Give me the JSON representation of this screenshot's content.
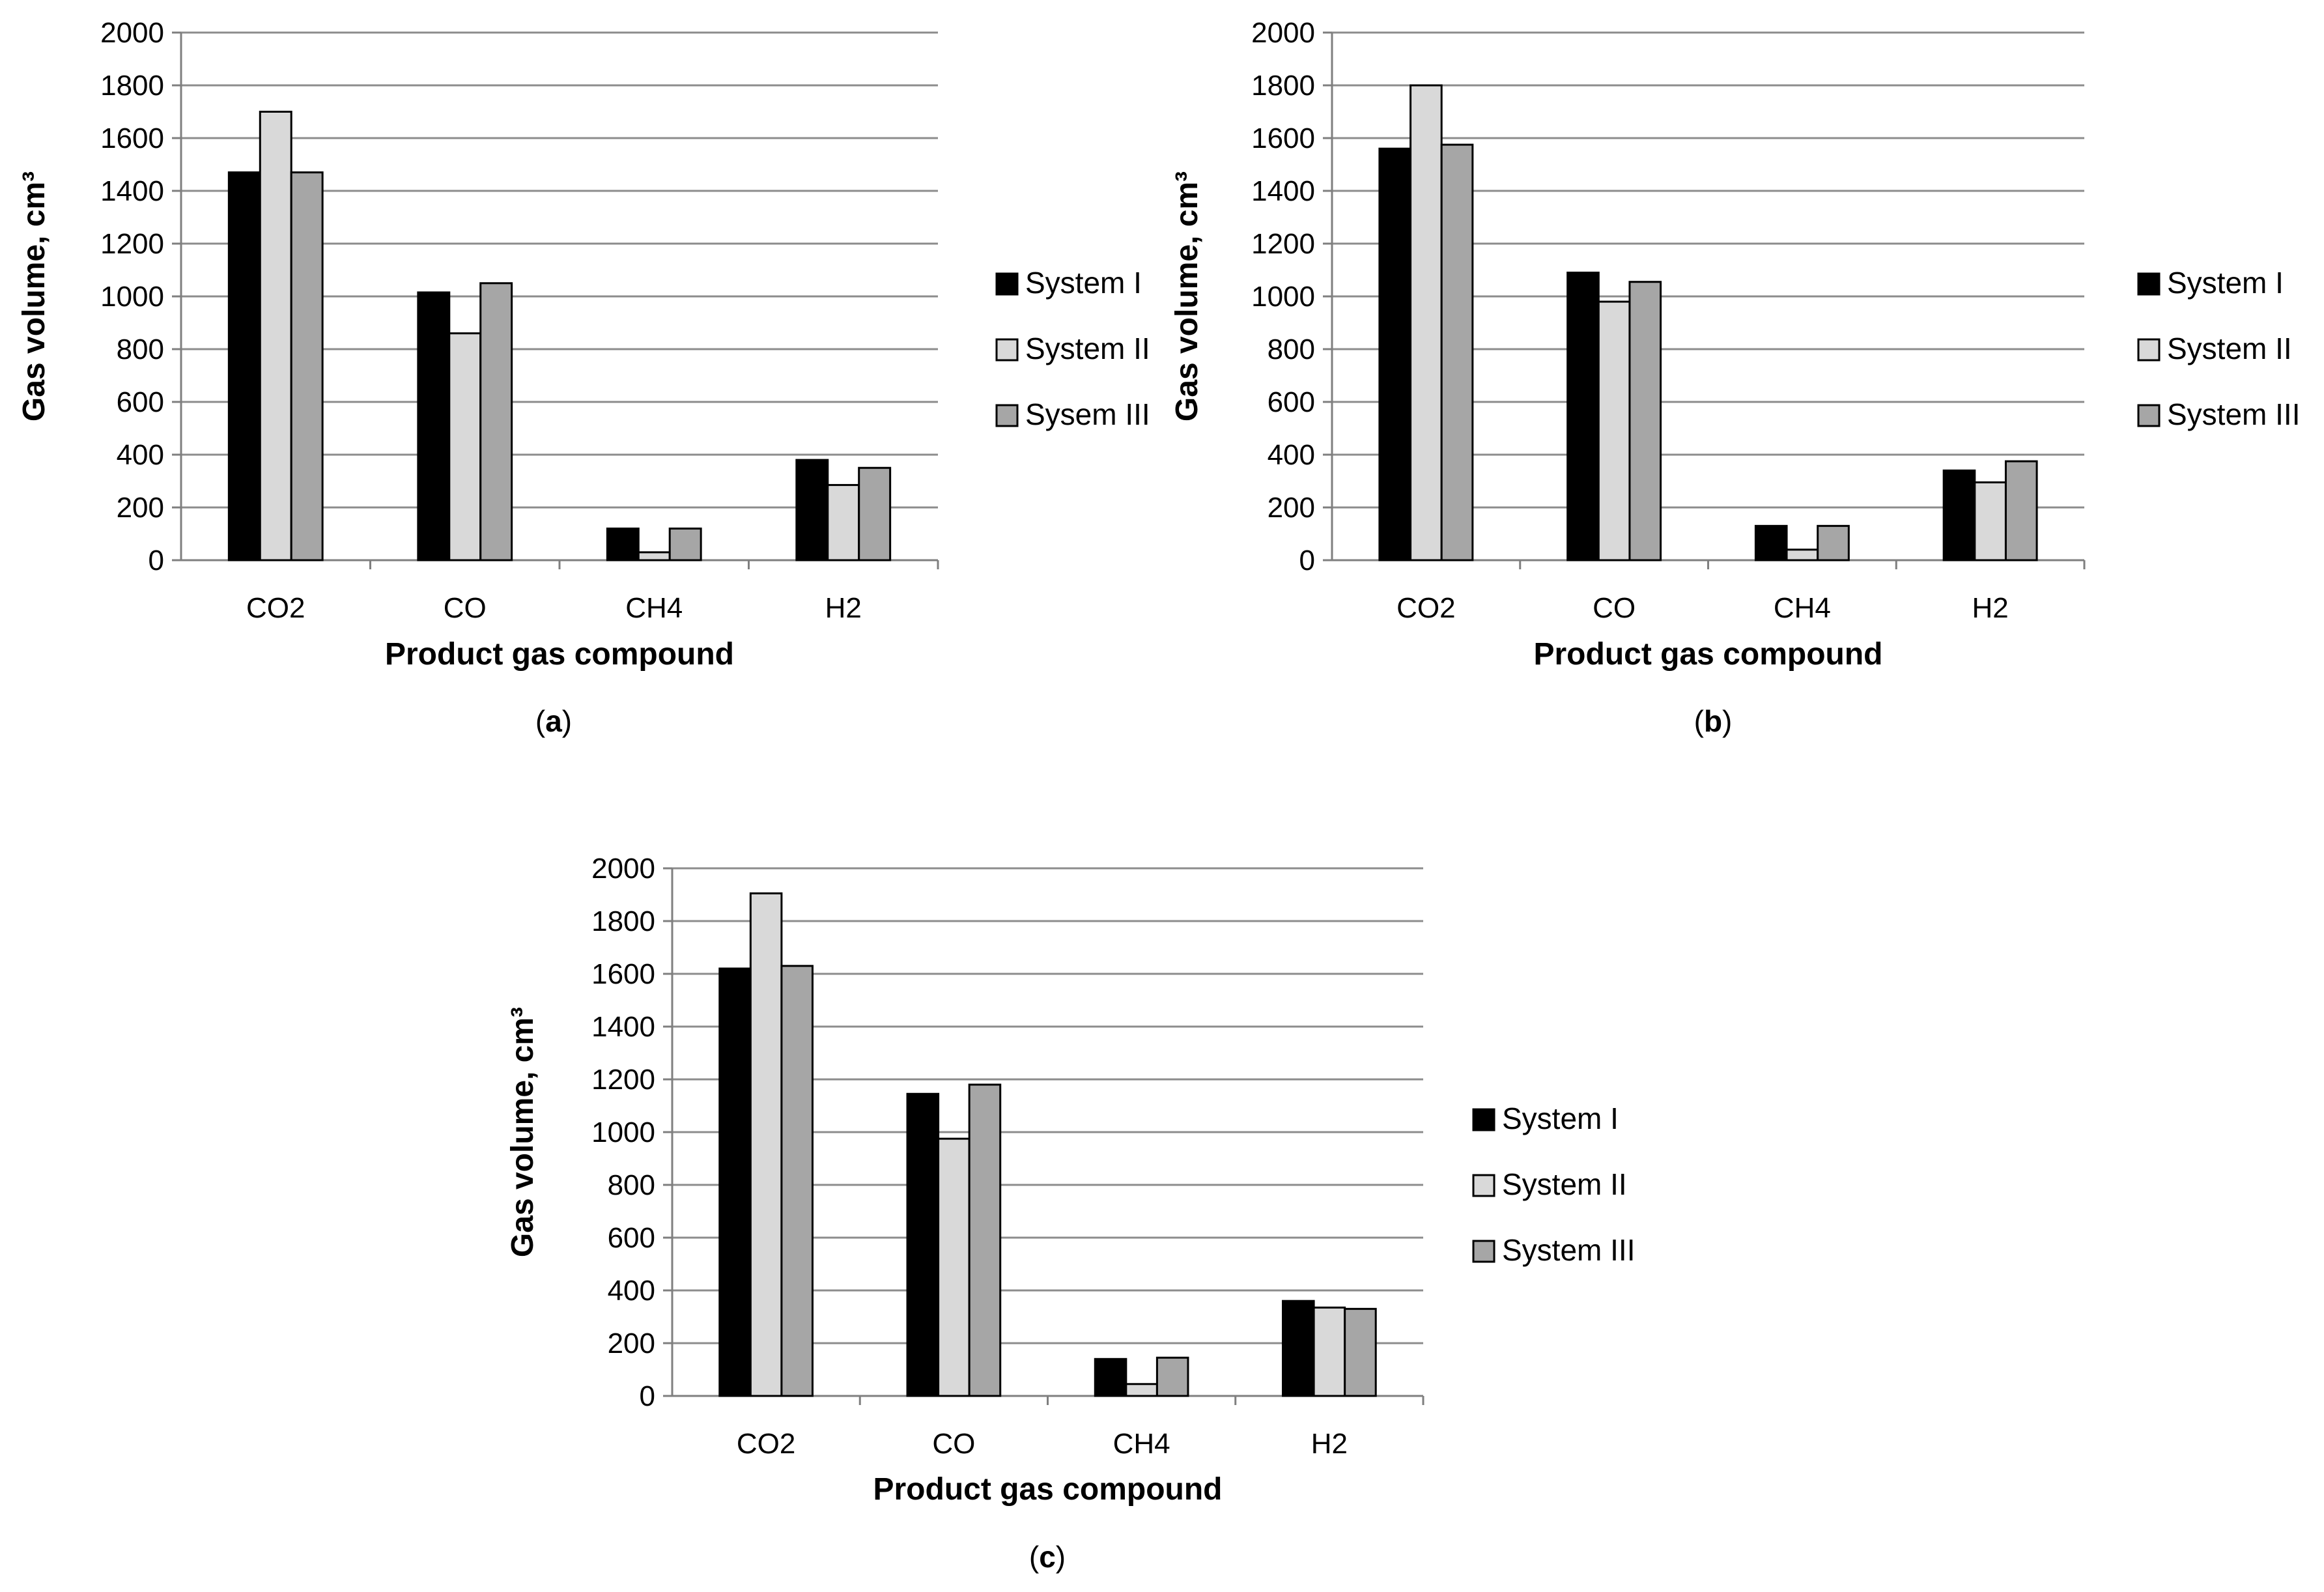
{
  "colors": {
    "series": [
      "#000000",
      "#d9d9d9",
      "#a6a6a6"
    ],
    "gridline": "#8c8c8c",
    "axis": "#7f7f7f"
  },
  "chart_data": [
    {
      "type": "bar",
      "panel_label_prefix": "(",
      "panel_letter": "a",
      "panel_label_suffix": ")",
      "categories": [
        "CO2",
        "CO",
        "CH4",
        "H2"
      ],
      "series": [
        {
          "name": "System I",
          "values": [
            1470,
            1015,
            120,
            380
          ]
        },
        {
          "name": "System II",
          "values": [
            1700,
            860,
            30,
            285
          ]
        },
        {
          "name": "Sysem III",
          "values": [
            1470,
            1050,
            120,
            350
          ]
        }
      ],
      "xlabel": "Product gas compound",
      "ylabel": "Gas volume, cm³",
      "ylim": [
        0,
        2000
      ],
      "yticks": [
        0,
        200,
        400,
        600,
        800,
        1000,
        1200,
        1400,
        1600,
        1800,
        2000
      ],
      "grid": true,
      "legend": "right"
    },
    {
      "type": "bar",
      "panel_label_prefix": "(",
      "panel_letter": "b",
      "panel_label_suffix": ")",
      "categories": [
        "CO2",
        "CO",
        "CH4",
        "H2"
      ],
      "series": [
        {
          "name": "System I",
          "values": [
            1560,
            1090,
            130,
            340
          ]
        },
        {
          "name": "System II",
          "values": [
            1800,
            980,
            40,
            295
          ]
        },
        {
          "name": "System III",
          "values": [
            1575,
            1055,
            130,
            375
          ]
        }
      ],
      "xlabel": "Product gas compound",
      "ylabel": "Gas volume, cm³",
      "ylim": [
        0,
        2000
      ],
      "yticks": [
        0,
        200,
        400,
        600,
        800,
        1000,
        1200,
        1400,
        1600,
        1800,
        2000
      ],
      "grid": true,
      "legend": "right"
    },
    {
      "type": "bar",
      "panel_label_prefix": "(",
      "panel_letter": "c",
      "panel_label_suffix": ")",
      "categories": [
        "CO2",
        "CO",
        "CH4",
        "H2"
      ],
      "series": [
        {
          "name": "System I",
          "values": [
            1620,
            1145,
            140,
            360
          ]
        },
        {
          "name": "System II",
          "values": [
            1905,
            975,
            45,
            335
          ]
        },
        {
          "name": "System III",
          "values": [
            1630,
            1180,
            145,
            330
          ]
        }
      ],
      "xlabel": "Product gas compound",
      "ylabel": "Gas volume, cm³",
      "ylim": [
        0,
        2000
      ],
      "yticks": [
        0,
        200,
        400,
        600,
        800,
        1000,
        1200,
        1400,
        1600,
        1800,
        2000
      ],
      "grid": true,
      "legend": "right"
    }
  ]
}
